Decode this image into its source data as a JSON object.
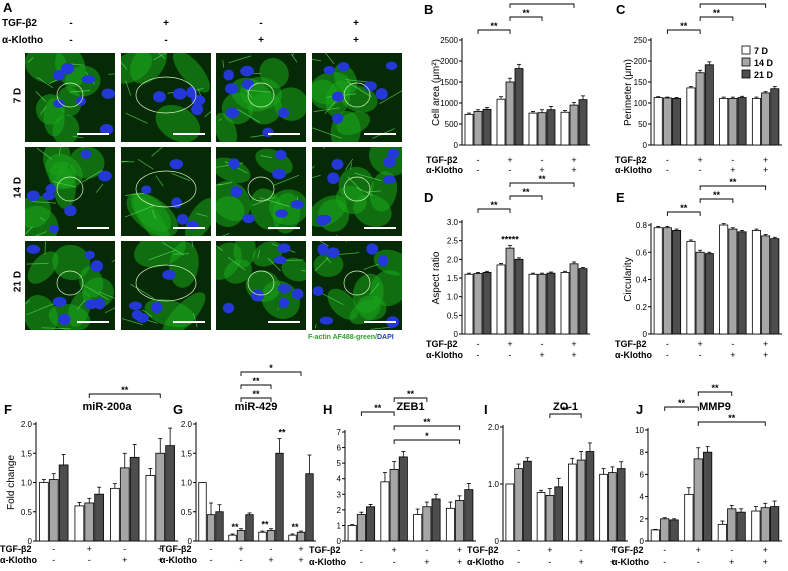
{
  "panelA": {
    "label": "A",
    "treatment_rows": [
      {
        "name": "TGF-β2",
        "values": [
          "-",
          "+",
          "-",
          "+"
        ]
      },
      {
        "name": "α-Klotho",
        "values": [
          "-",
          "-",
          "+",
          "+"
        ]
      }
    ],
    "row_labels": [
      "7 D",
      "14 D",
      "21 D"
    ],
    "caption_green": "F-actin AF488-green",
    "caption_sep": "/",
    "caption_blue": "DAPI",
    "colors": {
      "actin": "#1aa51a",
      "nucleus": "#2438d8",
      "background": "#052a05"
    }
  },
  "legend": {
    "items": [
      "7 D",
      "14 D",
      "21 D"
    ],
    "colors": [
      "#ffffff",
      "#a6a6a6",
      "#4d4d4d"
    ]
  },
  "chart_data": [
    {
      "id": "B",
      "type": "bar",
      "ylabel": "Cell area (μm²)",
      "ylim": [
        0,
        2500
      ],
      "yticks": [
        "0",
        "500",
        "1000",
        "1500",
        "2000",
        "2500"
      ],
      "series": [
        {
          "name": "7 D",
          "values": [
            730,
            1090,
            760,
            780
          ],
          "errors": [
            30,
            60,
            40,
            40
          ]
        },
        {
          "name": "14 D",
          "values": [
            800,
            1500,
            770,
            950
          ],
          "errors": [
            40,
            90,
            70,
            60
          ]
        },
        {
          "name": "21 D",
          "values": [
            850,
            1820,
            840,
            1080
          ],
          "errors": [
            40,
            100,
            80,
            90
          ]
        }
      ],
      "conditions": {
        "TGF-β2": [
          "-",
          "+",
          "-",
          "+"
        ],
        "α-Klotho": [
          "-",
          "-",
          "+",
          "+"
        ]
      },
      "significance": [
        {
          "from": 0,
          "to": 1,
          "label": "**",
          "level": 1
        },
        {
          "from": 1,
          "to": 2,
          "label": "**",
          "level": 2
        },
        {
          "from": 1,
          "to": 3,
          "label": "**",
          "level": 3
        }
      ]
    },
    {
      "id": "C",
      "type": "bar",
      "ylabel": "Perimeter (μm)",
      "ylim": [
        0,
        250
      ],
      "yticks": [
        "0",
        "50",
        "100",
        "150",
        "200",
        "250"
      ],
      "series": [
        {
          "name": "7 D",
          "values": [
            113,
            136,
            111,
            111
          ],
          "errors": [
            2,
            3,
            3,
            3
          ]
        },
        {
          "name": "14 D",
          "values": [
            112,
            172,
            111,
            124
          ],
          "errors": [
            2,
            6,
            3,
            3
          ]
        },
        {
          "name": "21 D",
          "values": [
            111,
            191,
            113,
            134
          ],
          "errors": [
            2,
            7,
            3,
            5
          ]
        }
      ],
      "conditions": {
        "TGF-β2": [
          "-",
          "+",
          "-",
          "+"
        ],
        "α-Klotho": [
          "-",
          "-",
          "+",
          "+"
        ]
      },
      "significance": [
        {
          "from": 0,
          "to": 1,
          "label": "**",
          "level": 1
        },
        {
          "from": 1,
          "to": 2,
          "label": "**",
          "level": 2
        },
        {
          "from": 1,
          "to": 3,
          "label": "**",
          "level": 3
        }
      ]
    },
    {
      "id": "D",
      "type": "bar",
      "ylabel": "Aspect ratio",
      "ylim": [
        0,
        3.0
      ],
      "yticks": [
        "0",
        "0.5",
        "1.0",
        "1.5",
        "2.0",
        "2.5",
        "3.0"
      ],
      "series": [
        {
          "name": "7 D",
          "values": [
            1.6,
            1.85,
            1.6,
            1.65
          ],
          "errors": [
            0.03,
            0.04,
            0.03,
            0.03
          ]
        },
        {
          "name": "14 D",
          "values": [
            1.62,
            2.3,
            1.6,
            1.88
          ],
          "errors": [
            0.03,
            0.07,
            0.03,
            0.05
          ]
        },
        {
          "name": "21 D",
          "values": [
            1.65,
            2.0,
            1.63,
            1.75
          ],
          "errors": [
            0.03,
            0.04,
            0.03,
            0.03
          ]
        }
      ],
      "conditions": {
        "TGF-β2": [
          "-",
          "+",
          "-",
          "+"
        ],
        "α-Klotho": [
          "-",
          "-",
          "+",
          "+"
        ]
      },
      "inner_label": "*****",
      "significance": [
        {
          "from": 0,
          "to": 1,
          "label": "**",
          "level": 1
        },
        {
          "from": 1,
          "to": 2,
          "label": "**",
          "level": 2
        },
        {
          "from": 1,
          "to": 3,
          "label": "**",
          "level": 3
        }
      ]
    },
    {
      "id": "E",
      "type": "bar",
      "ylabel": "Circularity",
      "ylim": [
        0,
        0.8
      ],
      "yticks": [
        "0",
        "0.2",
        "0.4",
        "0.6",
        "0.8"
      ],
      "series": [
        {
          "name": "7 D",
          "values": [
            0.78,
            0.68,
            0.8,
            0.76
          ],
          "errors": [
            0.01,
            0.01,
            0.01,
            0.01
          ]
        },
        {
          "name": "14 D",
          "values": [
            0.78,
            0.6,
            0.77,
            0.72
          ],
          "errors": [
            0.01,
            0.015,
            0.01,
            0.01
          ]
        },
        {
          "name": "21 D",
          "values": [
            0.76,
            0.59,
            0.75,
            0.7
          ],
          "errors": [
            0.01,
            0.01,
            0.01,
            0.01
          ]
        }
      ],
      "conditions": {
        "TGF-β2": [
          "-",
          "+",
          "-",
          "+"
        ],
        "α-Klotho": [
          "-",
          "-",
          "+",
          "+"
        ]
      },
      "significance": [
        {
          "from": 0,
          "to": 1,
          "label": "**",
          "level": 1
        },
        {
          "from": 1,
          "to": 2,
          "label": "**",
          "level": 2
        },
        {
          "from": 1,
          "to": 3,
          "label": "**",
          "level": 3
        }
      ]
    },
    {
      "id": "F",
      "type": "bar",
      "title": "miR-200a",
      "ylabel": "Fold change",
      "ylim": [
        0,
        2.0
      ],
      "yticks": [
        "0",
        "0.5",
        "1.0",
        "1.5",
        "2.0"
      ],
      "series": [
        {
          "name": "7 D",
          "values": [
            1.0,
            0.6,
            0.9,
            1.12
          ],
          "errors": [
            0.05,
            0.06,
            0.08,
            0.12
          ]
        },
        {
          "name": "14 D",
          "values": [
            1.05,
            0.65,
            1.25,
            1.5
          ],
          "errors": [
            0.1,
            0.08,
            0.25,
            0.25
          ]
        },
        {
          "name": "21 D",
          "values": [
            1.3,
            0.8,
            1.43,
            1.63
          ],
          "errors": [
            0.18,
            0.12,
            0.22,
            0.3
          ]
        }
      ],
      "conditions": {
        "TGF-β2": [
          "-",
          "+",
          "-",
          "+"
        ],
        "α-Klotho": [
          "-",
          "-",
          "+",
          "+"
        ]
      },
      "significance": [
        {
          "from": 1,
          "to": 3,
          "label": "**",
          "level": 1
        }
      ]
    },
    {
      "id": "G",
      "type": "bar",
      "title": "miR-429",
      "ylim": [
        0,
        2.0
      ],
      "yticks": [
        "0",
        "0.5",
        "1.0",
        "1.5",
        "2.0"
      ],
      "series": [
        {
          "name": "7 D",
          "values": [
            1.0,
            0.1,
            0.15,
            0.1
          ],
          "errors": [
            0.0,
            0.02,
            0.02,
            0.02
          ]
        },
        {
          "name": "14 D",
          "values": [
            0.45,
            0.18,
            0.18,
            0.15
          ],
          "errors": [
            0.2,
            0.03,
            0.03,
            0.02
          ]
        },
        {
          "name": "21 D",
          "values": [
            0.5,
            0.45,
            1.5,
            1.15
          ],
          "errors": [
            0.12,
            0.03,
            0.25,
            0.32
          ]
        }
      ],
      "bar_stars": [
        null,
        "**",
        "**",
        "**"
      ],
      "top_stars": [
        null,
        null,
        "**",
        null
      ],
      "conditions": {
        "TGF-β2": [
          "-",
          "+",
          "-",
          "+"
        ],
        "α-Klotho": [
          "-",
          "-",
          "+",
          "+"
        ]
      },
      "significance": [
        {
          "from": 1,
          "to": 2,
          "label": "**",
          "level": 1
        },
        {
          "from": 1,
          "to": 2,
          "label": "**",
          "level": 2
        },
        {
          "from": 1,
          "to": 3,
          "label": "*",
          "level": 3
        }
      ]
    },
    {
      "id": "H",
      "type": "bar",
      "title": "ZEB1",
      "ylim": [
        0,
        7
      ],
      "yticks": [
        "0",
        "1",
        "2",
        "3",
        "4",
        "5",
        "6",
        "7"
      ],
      "series": [
        {
          "name": "7 D",
          "values": [
            1.0,
            3.8,
            1.7,
            2.1
          ],
          "errors": [
            0.05,
            0.6,
            0.35,
            0.4
          ]
        },
        {
          "name": "14 D",
          "values": [
            1.7,
            4.6,
            2.2,
            2.6
          ],
          "errors": [
            0.15,
            0.5,
            0.3,
            0.3
          ]
        },
        {
          "name": "21 D",
          "values": [
            2.2,
            5.4,
            2.7,
            3.3
          ],
          "errors": [
            0.15,
            0.35,
            0.3,
            0.4
          ]
        }
      ],
      "conditions": {
        "TGF-β2": [
          "-",
          "+",
          "-",
          "+"
        ],
        "α-Klotho": [
          "-",
          "-",
          "+",
          "+"
        ]
      },
      "significance": [
        {
          "from": 0,
          "to": 1,
          "label": "**",
          "level": 2
        },
        {
          "from": 1,
          "to": 2,
          "label": "**",
          "level": 3
        },
        {
          "from": 1,
          "to": 3,
          "label": "**",
          "level": 1
        },
        {
          "from": 1,
          "to": 3,
          "label": "*",
          "level": 0
        }
      ]
    },
    {
      "id": "I",
      "type": "bar",
      "title": "ZO-1",
      "ylim": [
        0,
        2.0
      ],
      "yticks": [
        "0",
        "1.0",
        "2.0"
      ],
      "series": [
        {
          "name": "7 D",
          "values": [
            1.0,
            0.85,
            1.35,
            1.17
          ],
          "errors": [
            0.0,
            0.04,
            0.1,
            0.1
          ]
        },
        {
          "name": "14 D",
          "values": [
            1.27,
            0.8,
            1.42,
            1.2
          ],
          "errors": [
            0.08,
            0.12,
            0.15,
            0.1
          ]
        },
        {
          "name": "21 D",
          "values": [
            1.4,
            0.95,
            1.57,
            1.27
          ],
          "errors": [
            0.06,
            0.15,
            0.15,
            0.12
          ]
        }
      ],
      "conditions": {
        "TGF-β2": [
          "-",
          "+",
          "-",
          "+"
        ],
        "α-Klotho": [
          "-",
          "-",
          "+",
          "+"
        ]
      },
      "significance": [
        {
          "from": 1,
          "to": 2,
          "label": "**",
          "level": 1
        }
      ]
    },
    {
      "id": "J",
      "type": "bar",
      "title": "MMP9",
      "ylim": [
        0,
        10
      ],
      "yticks": [
        "0",
        "2",
        "4",
        "6",
        "8",
        "10"
      ],
      "series": [
        {
          "name": "7 D",
          "values": [
            1.0,
            4.2,
            1.5,
            2.7
          ],
          "errors": [
            0.05,
            0.6,
            0.3,
            0.4
          ]
        },
        {
          "name": "14 D",
          "values": [
            2.0,
            7.4,
            2.9,
            3.0
          ],
          "errors": [
            0.1,
            1.0,
            0.3,
            0.4
          ]
        },
        {
          "name": "21 D",
          "values": [
            1.9,
            8.0,
            2.6,
            3.1
          ],
          "errors": [
            0.1,
            0.5,
            0.3,
            0.5
          ]
        }
      ],
      "conditions": {
        "TGF-β2": [
          "-",
          "+",
          "-",
          "+"
        ],
        "α-Klotho": [
          "-",
          "-",
          "+",
          "+"
        ]
      },
      "significance": [
        {
          "from": 0,
          "to": 1,
          "label": "**",
          "level": 2
        },
        {
          "from": 1,
          "to": 2,
          "label": "**",
          "level": 3
        },
        {
          "from": 1,
          "to": 3,
          "label": "**",
          "level": 1
        }
      ]
    }
  ]
}
